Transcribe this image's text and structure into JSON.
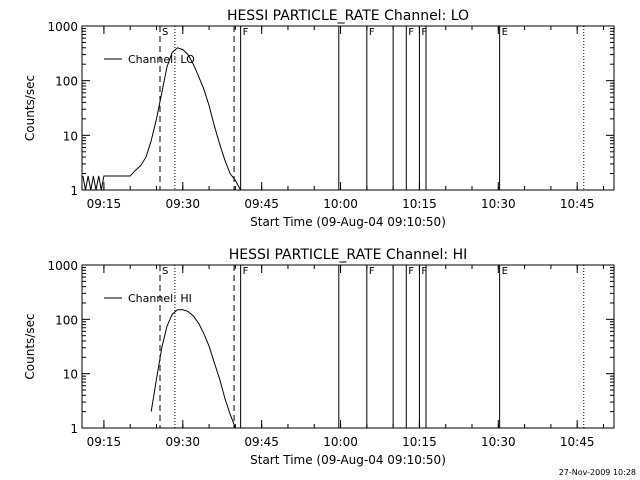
{
  "footer_stamp": "27-Nov-2009 10:28",
  "chart_data": [
    {
      "type": "line",
      "title": "HESSI PARTICLE_RATE Channel: LO",
      "xlabel": "Start Time (09-Aug-04 09:10:50)",
      "ylabel": "Counts/sec",
      "yscale": "log",
      "ylim": [
        1,
        1000
      ],
      "xlim": [
        "09:10:50",
        "10:52:00"
      ],
      "x_ticks": [
        "09:15",
        "09:30",
        "09:45",
        "10:00",
        "10:15",
        "10:30",
        "10:45"
      ],
      "y_ticks": [
        "1",
        "10",
        "100",
        "1000"
      ],
      "legend": {
        "entries": [
          "Channel: LO"
        ],
        "placement": "top-left"
      },
      "grid": false,
      "series": [
        {
          "name": "Channel: LO",
          "x": [
            "09:11:00",
            "09:11:30",
            "09:12:00",
            "09:12:30",
            "09:13:00",
            "09:13:30",
            "09:14:00",
            "09:14:30",
            "09:15:00",
            "09:17:00",
            "09:20:00",
            "09:21:00",
            "09:22:00",
            "09:23:00",
            "09:24:00",
            "09:25:00",
            "09:26:00",
            "09:27:00",
            "09:28:00",
            "09:29:00",
            "09:30:00",
            "09:31:00",
            "09:32:00",
            "09:33:00",
            "09:34:00",
            "09:35:00",
            "09:36:00",
            "09:37:00",
            "09:38:00",
            "09:39:00",
            "09:40:00",
            "09:41:00"
          ],
          "values": [
            1.8,
            1,
            1.8,
            1,
            1.8,
            1,
            1.8,
            1,
            1.8,
            1.8,
            1.8,
            2.3,
            2.8,
            4,
            8,
            20,
            60,
            180,
            330,
            400,
            370,
            300,
            200,
            120,
            70,
            35,
            15,
            7,
            3.5,
            2,
            1.5,
            1
          ]
        }
      ],
      "markers": [
        {
          "label": "S",
          "time": "09:25:40",
          "style": "dashed"
        },
        {
          "label": "",
          "time": "09:28:30",
          "style": "dotted"
        },
        {
          "label": "",
          "time": "09:39:45",
          "style": "dashed"
        },
        {
          "label": "F",
          "time": "09:41:00",
          "style": "solid"
        },
        {
          "label": "",
          "time": "09:59:40",
          "style": "solid"
        },
        {
          "label": "F",
          "time": "10:05:00",
          "style": "solid"
        },
        {
          "label": "",
          "time": "10:10:00",
          "style": "solid"
        },
        {
          "label": "F",
          "time": "10:12:30",
          "style": "solid"
        },
        {
          "label": "F",
          "time": "10:15:00",
          "style": "solid"
        },
        {
          "label": "",
          "time": "10:16:15",
          "style": "solid"
        },
        {
          "label": "E",
          "time": "10:30:15",
          "style": "solid"
        },
        {
          "label": "",
          "time": "10:46:15",
          "style": "dotted"
        }
      ]
    },
    {
      "type": "line",
      "title": "HESSI PARTICLE_RATE Channel: HI",
      "xlabel": "Start Time (09-Aug-04 09:10:50)",
      "ylabel": "Counts/sec",
      "yscale": "log",
      "ylim": [
        1,
        1000
      ],
      "xlim": [
        "09:10:50",
        "10:52:00"
      ],
      "x_ticks": [
        "09:15",
        "09:30",
        "09:45",
        "10:00",
        "10:15",
        "10:30",
        "10:45"
      ],
      "y_ticks": [
        "1",
        "10",
        "100",
        "1000"
      ],
      "legend": {
        "entries": [
          "Channel: HI"
        ],
        "placement": "top-left"
      },
      "grid": false,
      "series": [
        {
          "name": "Channel: HI",
          "x": [
            "09:24:00",
            "09:25:00",
            "09:26:00",
            "09:27:00",
            "09:28:00",
            "09:29:00",
            "09:30:00",
            "09:31:00",
            "09:32:00",
            "09:33:00",
            "09:34:00",
            "09:35:00",
            "09:36:00",
            "09:37:00",
            "09:38:00",
            "09:39:00",
            "09:40:00"
          ],
          "values": [
            2,
            8,
            30,
            75,
            125,
            150,
            150,
            140,
            115,
            85,
            55,
            32,
            16,
            8,
            3.5,
            1.8,
            1
          ]
        }
      ],
      "markers": [
        {
          "label": "S",
          "time": "09:25:40",
          "style": "dashed"
        },
        {
          "label": "",
          "time": "09:28:30",
          "style": "dotted"
        },
        {
          "label": "",
          "time": "09:39:45",
          "style": "dashed"
        },
        {
          "label": "F",
          "time": "09:41:00",
          "style": "solid"
        },
        {
          "label": "",
          "time": "09:59:40",
          "style": "solid"
        },
        {
          "label": "F",
          "time": "10:05:00",
          "style": "solid"
        },
        {
          "label": "",
          "time": "10:10:00",
          "style": "solid"
        },
        {
          "label": "F",
          "time": "10:12:30",
          "style": "solid"
        },
        {
          "label": "F",
          "time": "10:15:00",
          "style": "solid"
        },
        {
          "label": "",
          "time": "10:16:15",
          "style": "solid"
        },
        {
          "label": "E",
          "time": "10:30:15",
          "style": "solid"
        },
        {
          "label": "",
          "time": "10:46:15",
          "style": "dotted"
        }
      ]
    }
  ]
}
